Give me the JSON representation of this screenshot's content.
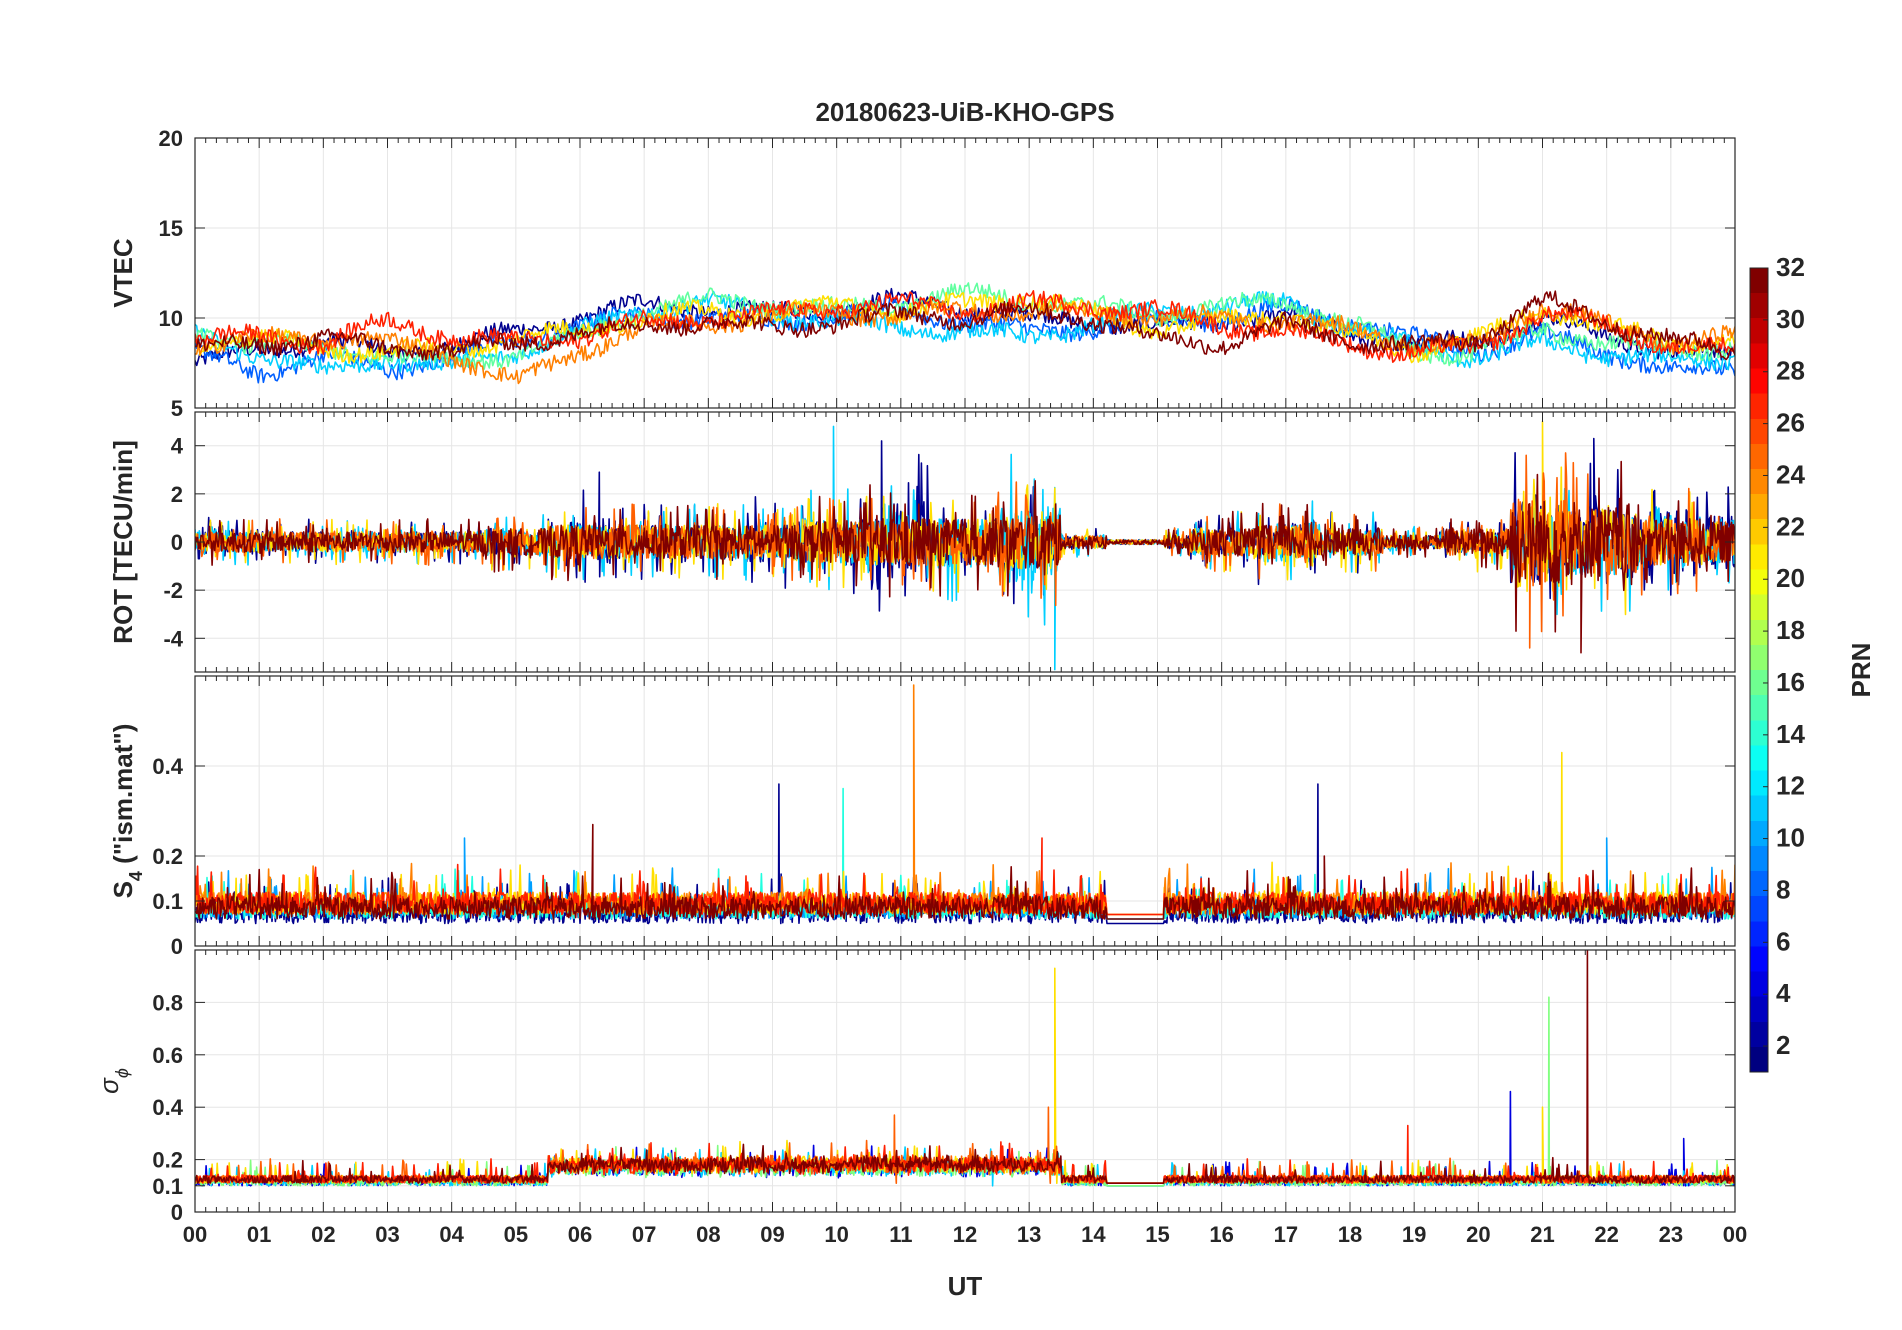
{
  "figure": {
    "title": "20180623-UiB-KHO-GPS",
    "xlabel": "UT",
    "colorbar_label": "PRN"
  },
  "chart_data": [
    {
      "type": "line",
      "panel": "VTEC",
      "ylabel": "VTEC",
      "ylim": [
        5,
        20
      ],
      "yticks": [
        5,
        10,
        15,
        20
      ],
      "xlim": [
        0,
        24
      ],
      "xticks": [
        "00",
        "01",
        "02",
        "03",
        "04",
        "05",
        "06",
        "07",
        "08",
        "09",
        "10",
        "11",
        "12",
        "13",
        "14",
        "15",
        "16",
        "17",
        "18",
        "19",
        "20",
        "21",
        "22",
        "23",
        "00"
      ],
      "grid": true,
      "series": [
        {
          "prn": 2,
          "color": "#00008f",
          "x": [
            0,
            1,
            2,
            3,
            4,
            5,
            6,
            7,
            8,
            9,
            10,
            11,
            12,
            13,
            14,
            15,
            16,
            17,
            18,
            19,
            20,
            21,
            22,
            23,
            24
          ],
          "y": [
            7.5,
            8.2,
            8.8,
            8.0,
            8.5,
            9.2,
            10.0,
            10.8,
            10.5,
            10.2,
            10.6,
            11.0,
            10.5,
            10.0,
            9.8,
            9.5,
            9.8,
            10.2,
            9.2,
            8.5,
            8.8,
            10.0,
            9.0,
            8.2,
            7.8
          ]
        },
        {
          "prn": 8,
          "color": "#005fff",
          "x": [
            0,
            1,
            2,
            3,
            4,
            5,
            6,
            7,
            8,
            9,
            10,
            11,
            12,
            13,
            14,
            15,
            16,
            17,
            18,
            19,
            20,
            21,
            22,
            23,
            24
          ],
          "y": [
            8.0,
            7.0,
            7.8,
            7.2,
            7.8,
            8.8,
            9.5,
            10.2,
            10.0,
            9.8,
            10.2,
            10.4,
            9.8,
            9.2,
            9.5,
            9.8,
            10.0,
            10.5,
            9.8,
            8.8,
            8.2,
            9.0,
            8.2,
            7.0,
            7.2
          ]
        },
        {
          "prn": 12,
          "color": "#00cfff",
          "x": [
            0,
            1,
            2,
            3,
            4,
            5,
            6,
            7,
            8,
            9,
            10,
            11,
            12,
            13,
            14,
            15,
            16,
            17,
            18,
            19,
            20,
            21,
            22,
            23,
            24
          ],
          "y": [
            9.0,
            8.0,
            7.0,
            7.8,
            7.2,
            8.2,
            9.2,
            10.5,
            10.8,
            10.2,
            9.8,
            9.5,
            9.2,
            9.0,
            9.6,
            10.4,
            10.6,
            10.8,
            9.5,
            8.4,
            7.8,
            8.6,
            8.0,
            7.6,
            7.8
          ]
        },
        {
          "prn": 16,
          "color": "#60ff9f",
          "x": [
            0,
            1,
            2,
            3,
            4,
            5,
            6,
            7,
            8,
            9,
            10,
            11,
            12,
            13,
            14,
            15,
            16,
            17,
            18,
            19,
            20,
            21,
            22,
            23,
            24
          ],
          "y": [
            9.2,
            8.6,
            8.2,
            8.0,
            7.6,
            8.0,
            9.0,
            10.4,
            11.0,
            10.8,
            10.4,
            10.8,
            11.4,
            11.0,
            10.6,
            10.2,
            10.6,
            11.0,
            9.6,
            8.2,
            8.0,
            9.4,
            8.6,
            8.2,
            8.4
          ]
        },
        {
          "prn": 20,
          "color": "#ffdf00",
          "x": [
            0,
            1,
            2,
            3,
            4,
            5,
            6,
            7,
            8,
            9,
            10,
            11,
            12,
            13,
            14,
            15,
            16,
            17,
            18,
            19,
            20,
            21,
            22,
            23,
            24
          ],
          "y": [
            8.6,
            8.8,
            8.4,
            8.0,
            8.4,
            8.8,
            9.4,
            10.0,
            10.4,
            10.2,
            10.8,
            10.4,
            10.8,
            11.2,
            10.2,
            9.4,
            9.8,
            10.2,
            9.0,
            8.2,
            8.8,
            10.6,
            9.4,
            8.8,
            8.6
          ]
        },
        {
          "prn": 24,
          "color": "#ff7f00",
          "x": [
            0,
            1,
            2,
            3,
            4,
            5,
            6,
            7,
            8,
            9,
            10,
            11,
            12,
            13,
            14,
            15,
            16,
            17,
            18,
            19,
            20,
            21,
            22,
            23,
            24
          ],
          "y": [
            8.4,
            8.8,
            9.0,
            8.6,
            8.0,
            6.4,
            8.2,
            9.4,
            9.8,
            10.0,
            10.4,
            10.0,
            10.6,
            10.2,
            10.4,
            10.0,
            10.0,
            9.8,
            9.4,
            8.6,
            8.4,
            10.8,
            9.6,
            8.6,
            9.0
          ]
        },
        {
          "prn": 28,
          "color": "#ff1f00",
          "x": [
            0,
            1,
            2,
            3,
            4,
            5,
            6,
            7,
            8,
            9,
            10,
            11,
            12,
            13,
            14,
            15,
            16,
            17,
            18,
            19,
            20,
            21,
            22,
            23,
            24
          ],
          "y": [
            8.8,
            9.0,
            8.6,
            9.8,
            9.0,
            8.6,
            9.0,
            9.8,
            10.0,
            10.2,
            10.6,
            10.8,
            10.4,
            10.8,
            10.6,
            10.4,
            9.6,
            9.2,
            8.6,
            8.0,
            8.4,
            10.2,
            9.6,
            8.4,
            8.2
          ]
        },
        {
          "prn": 32,
          "color": "#800000",
          "x": [
            0,
            1,
            2,
            3,
            4,
            5,
            6,
            7,
            8,
            9,
            10,
            11,
            12,
            13,
            14,
            15,
            16,
            17,
            18,
            19,
            20,
            21,
            22,
            23,
            24
          ],
          "y": [
            8.2,
            8.6,
            8.8,
            8.4,
            8.2,
            8.6,
            9.2,
            9.6,
            9.8,
            9.4,
            9.8,
            10.2,
            10.0,
            10.4,
            10.0,
            8.8,
            8.6,
            9.6,
            8.8,
            8.4,
            8.8,
            11.0,
            9.8,
            8.8,
            8.0
          ]
        }
      ]
    },
    {
      "type": "line",
      "panel": "ROT",
      "ylabel": "ROT [TECU/min]",
      "ylim": [
        -5.4,
        5.4
      ],
      "yticks": [
        -4,
        -2,
        0,
        2,
        4
      ],
      "xlim": [
        0,
        24
      ],
      "grid": true,
      "series": [
        {
          "prn": 2,
          "color": "#00008f",
          "amp": [
            1.0,
            0.8,
            0.6,
            0.6,
            0.6,
            0.8,
            1.4,
            1.0,
            1.0,
            1.2,
            1.4,
            2.4,
            1.4,
            1.6,
            0.4,
            0.4,
            0.8,
            1.2,
            0.8,
            0.4,
            0.6,
            2.4,
            2.2,
            2.0,
            1.6
          ],
          "peak_x": [
            6.3,
            10.7,
            21.8
          ],
          "peak_y": [
            2.9,
            4.2,
            4.3
          ]
        },
        {
          "prn": 12,
          "color": "#00cfff",
          "amp": [
            0.8,
            0.6,
            0.6,
            0.6,
            0.6,
            0.8,
            1.0,
            1.0,
            1.0,
            1.0,
            1.4,
            1.6,
            1.6,
            2.4,
            0.4,
            0.4,
            0.8,
            1.2,
            0.8,
            0.4,
            0.6,
            2.0,
            2.0,
            1.6,
            1.4
          ],
          "peak_x": [
            9.95,
            13.4
          ],
          "peak_y": [
            4.8,
            -5.3
          ]
        },
        {
          "prn": 20,
          "color": "#ffdf00",
          "amp": [
            0.6,
            0.6,
            0.6,
            0.6,
            0.6,
            0.8,
            1.0,
            1.0,
            1.0,
            1.0,
            1.2,
            1.4,
            1.4,
            1.6,
            0.4,
            0.4,
            0.8,
            1.0,
            0.8,
            0.4,
            0.8,
            3.0,
            2.0,
            1.4,
            1.2
          ],
          "peak_x": [
            21.0
          ],
          "peak_y": [
            5.0
          ]
        },
        {
          "prn": 26,
          "color": "#ff5f00",
          "amp": [
            0.6,
            0.6,
            0.6,
            0.6,
            0.6,
            0.8,
            1.0,
            1.0,
            1.0,
            1.0,
            1.2,
            1.4,
            1.4,
            1.8,
            0.4,
            0.4,
            0.8,
            1.0,
            0.8,
            0.4,
            0.8,
            2.6,
            2.0,
            1.4,
            1.2
          ],
          "peak_x": [
            20.8
          ],
          "peak_y": [
            -4.4
          ]
        },
        {
          "prn": 32,
          "color": "#800000",
          "amp": [
            0.6,
            0.6,
            0.6,
            0.6,
            0.6,
            0.8,
            1.0,
            1.0,
            1.0,
            1.0,
            1.2,
            1.6,
            1.4,
            1.6,
            0.4,
            0.4,
            0.8,
            1.0,
            0.8,
            0.4,
            0.8,
            2.6,
            2.2,
            1.4,
            1.2
          ],
          "peak_x": [
            21.6
          ],
          "peak_y": [
            -4.6
          ]
        }
      ]
    },
    {
      "type": "line",
      "panel": "S4",
      "ylabel_main": "S",
      "ylabel_sub": "4",
      "ylabel_rest": " (\"ism.mat\")",
      "ylim": [
        0,
        0.6
      ],
      "yticks": [
        0,
        0.1,
        0.2,
        0.4
      ],
      "xlim": [
        0,
        24
      ],
      "grid": true,
      "series": [
        {
          "prn": 2,
          "color": "#00008f",
          "base": 0.05,
          "peak_x": [
            9.1,
            17.5
          ],
          "peak_y": [
            0.36,
            0.36
          ]
        },
        {
          "prn": 10,
          "color": "#009fff",
          "base": 0.06,
          "peak_x": [
            4.2,
            22.0
          ],
          "peak_y": [
            0.24,
            0.24
          ]
        },
        {
          "prn": 14,
          "color": "#20ffdf",
          "base": 0.06,
          "peak_x": [
            10.1
          ],
          "peak_y": [
            0.35
          ]
        },
        {
          "prn": 20,
          "color": "#ffdf00",
          "base": 0.07,
          "peak_x": [
            21.3
          ],
          "peak_y": [
            0.43
          ]
        },
        {
          "prn": 24,
          "color": "#ff7f00",
          "base": 0.07,
          "peak_x": [
            11.2
          ],
          "peak_y": [
            0.58
          ]
        },
        {
          "prn": 28,
          "color": "#ff1f00",
          "base": 0.07,
          "peak_x": [
            13.2
          ],
          "peak_y": [
            0.24
          ]
        },
        {
          "prn": 32,
          "color": "#800000",
          "base": 0.06,
          "peak_x": [
            6.2,
            17.6
          ],
          "peak_y": [
            0.27,
            0.2
          ]
        }
      ]
    },
    {
      "type": "line",
      "panel": "sigma_phi",
      "ylabel_main": "σ",
      "ylabel_sub": "ϕ",
      "ylim": [
        0,
        1.0
      ],
      "yticks": [
        0,
        0.1,
        0.2,
        0.4,
        0.6,
        0.8
      ],
      "xlim": [
        0,
        24
      ],
      "grid": true,
      "series": [
        {
          "prn": 4,
          "color": "#0000df",
          "base": 0.1,
          "peak_x": [
            20.5,
            23.2
          ],
          "peak_y": [
            0.46,
            0.28
          ]
        },
        {
          "prn": 12,
          "color": "#00cfff",
          "base": 0.1,
          "peak_x": [
            12.4
          ],
          "peak_y": [
            0.24
          ]
        },
        {
          "prn": 17,
          "color": "#80ff7f",
          "base": 0.1,
          "peak_x": [
            21.1
          ],
          "peak_y": [
            0.82
          ]
        },
        {
          "prn": 20,
          "color": "#ffdf00",
          "base": 0.11,
          "peak_x": [
            13.4,
            21.0
          ],
          "peak_y": [
            0.93,
            0.4
          ]
        },
        {
          "prn": 26,
          "color": "#ff5f00",
          "base": 0.11,
          "peak_x": [
            10.9,
            13.3
          ],
          "peak_y": [
            0.37,
            0.4
          ]
        },
        {
          "prn": 28,
          "color": "#ff1f00",
          "base": 0.11,
          "peak_x": [
            18.9
          ],
          "peak_y": [
            0.33
          ]
        },
        {
          "prn": 32,
          "color": "#800000",
          "base": 0.11,
          "peak_x": [
            21.7
          ],
          "peak_y": [
            1.0
          ]
        }
      ]
    }
  ],
  "colorbar": {
    "ticks": [
      2,
      4,
      6,
      8,
      10,
      12,
      14,
      16,
      18,
      20,
      22,
      24,
      26,
      28,
      30,
      32
    ],
    "range": [
      1,
      32
    ],
    "colormap": "jet"
  }
}
